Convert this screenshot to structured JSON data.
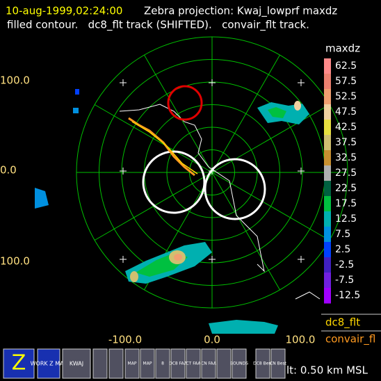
{
  "header": {
    "timestamp": "10-aug-1999,02:24:00",
    "title": "Zebra projection: Kwaj_lowprf maxdz",
    "subtitle": "filled contour.   dc8_flt track (SHIFTED).   convair_flt track."
  },
  "y_axis_labels": [
    "100.0",
    "0.0",
    "100.0"
  ],
  "x_axis_labels": [
    "-100.0",
    "0.0",
    "100.0"
  ],
  "colorbar": {
    "title": "maxdz",
    "labels": [
      "62.5",
      "57.5",
      "52.5",
      "47.5",
      "42.5",
      "37.5",
      "32.5",
      "27.5",
      "22.5",
      "17.5",
      "12.5",
      "7.5",
      "2.5",
      "-2.5",
      "-7.5",
      "-12.5"
    ],
    "colors": [
      "#ff8a8a",
      "#ec8070",
      "#f0a070",
      "#f0d0a0",
      "#e8e040",
      "#d0c070",
      "#c89030",
      "#b0b0b0",
      "#006040",
      "#00c040",
      "#00b0b0",
      "#0090e0",
      "#0040ff",
      "#4020c0",
      "#7020e0",
      "#a000ff"
    ]
  },
  "tracks": [
    {
      "name": "dc8_flt",
      "color": "#ffd700"
    },
    {
      "name": "convair_fl",
      "color": "#ff9a20"
    }
  ],
  "altitude": "lt: 0.50 km MSL",
  "toolbar": [
    "Z",
    "WORK Z MAP",
    "KWAJ",
    "MAP",
    "MAP",
    "8",
    "DC8 FAA",
    "CT FAA",
    "CN FAA",
    "BOUNDS",
    "DC8 Best",
    "CN Best"
  ]
}
